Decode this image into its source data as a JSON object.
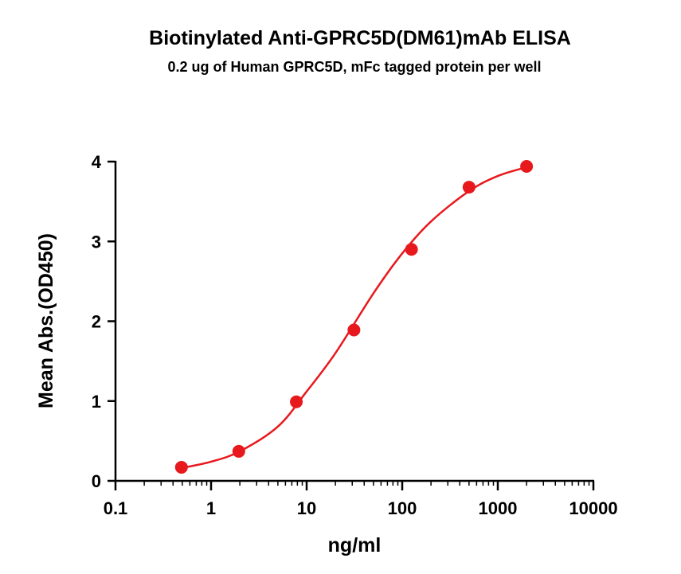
{
  "chart_data": {
    "type": "scatter",
    "title": "Biotinylated Anti-GPRC5D(DM61)mAb ELISA",
    "subtitle": "0.2 ug of Human GPRC5D, mFc tagged protein per well",
    "x_label": "ng/ml",
    "y_label": "Mean Abs.(OD450)",
    "x_scale": "log",
    "xlim": [
      0.1,
      10000
    ],
    "xticks": [
      0.1,
      1,
      10,
      100,
      1000,
      10000
    ],
    "ylim": [
      0,
      4
    ],
    "yticks": [
      0,
      1,
      2,
      3,
      4
    ],
    "series": [
      {
        "color": "#e8191d",
        "x": [
          0.49,
          1.95,
          7.8,
          31.25,
          125,
          500,
          2000
        ],
        "values": [
          0.17,
          0.37,
          0.99,
          1.89,
          2.9,
          3.68,
          3.94
        ]
      },
      {
        "color": "#e8191d",
        "line": true,
        "x": [
          0.49,
          1,
          2,
          5,
          10,
          20,
          50,
          100,
          200,
          500,
          1000,
          2000
        ],
        "values": [
          0.16,
          0.24,
          0.37,
          0.68,
          1.12,
          1.6,
          2.35,
          2.85,
          3.25,
          3.63,
          3.82,
          3.93
        ]
      }
    ]
  }
}
